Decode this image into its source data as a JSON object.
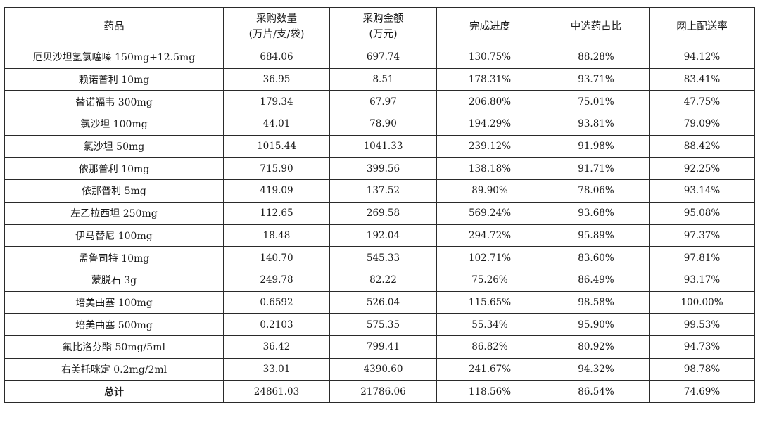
{
  "table": {
    "headers": [
      {
        "lines": [
          "药品"
        ]
      },
      {
        "lines": [
          "采购数量",
          "(万片/支/袋)"
        ]
      },
      {
        "lines": [
          "采购金额",
          "(万元)"
        ]
      },
      {
        "lines": [
          "完成进度"
        ]
      },
      {
        "lines": [
          "中选药占比"
        ]
      },
      {
        "lines": [
          "网上配送率"
        ]
      }
    ],
    "rows": [
      [
        "厄贝沙坦氢氯噻嗪 150mg+12.5mg",
        "684.06",
        "697.74",
        "130.75%",
        "88.28%",
        "94.12%"
      ],
      [
        "赖诺普利 10mg",
        "36.95",
        "8.51",
        "178.31%",
        "93.71%",
        "83.41%"
      ],
      [
        "替诺福韦 300mg",
        "179.34",
        "67.97",
        "206.80%",
        "75.01%",
        "47.75%"
      ],
      [
        "氯沙坦 100mg",
        "44.01",
        "78.90",
        "194.29%",
        "93.81%",
        "79.09%"
      ],
      [
        "氯沙坦 50mg",
        "1015.44",
        "1041.33",
        "239.12%",
        "91.98%",
        "88.42%"
      ],
      [
        "依那普利 10mg",
        "715.90",
        "399.56",
        "138.18%",
        "91.71%",
        "92.25%"
      ],
      [
        "依那普利 5mg",
        "419.09",
        "137.52",
        "89.90%",
        "78.06%",
        "93.14%"
      ],
      [
        "左乙拉西坦 250mg",
        "112.65",
        "269.58",
        "569.24%",
        "93.68%",
        "95.08%"
      ],
      [
        "伊马替尼 100mg",
        "18.48",
        "192.04",
        "294.72%",
        "95.89%",
        "97.37%"
      ],
      [
        "孟鲁司特 10mg",
        "140.70",
        "545.33",
        "102.71%",
        "83.60%",
        "97.81%"
      ],
      [
        "蒙脱石 3g",
        "249.78",
        "82.22",
        "75.26%",
        "86.49%",
        "93.17%"
      ],
      [
        "培美曲塞 100mg",
        "0.6592",
        "526.04",
        "115.65%",
        "98.58%",
        "100.00%"
      ],
      [
        "培美曲塞 500mg",
        "0.2103",
        "575.35",
        "55.34%",
        "95.90%",
        "99.53%"
      ],
      [
        "氟比洛芬酯 50mg/5ml",
        "36.42",
        "799.41",
        "86.82%",
        "80.92%",
        "94.73%"
      ],
      [
        "右美托咪定 0.2mg/2ml",
        "33.01",
        "4390.60",
        "241.67%",
        "94.32%",
        "98.78%"
      ]
    ],
    "total": [
      "总计",
      "24861.03",
      "21786.06",
      "118.56%",
      "86.54%",
      "74.69%"
    ]
  }
}
